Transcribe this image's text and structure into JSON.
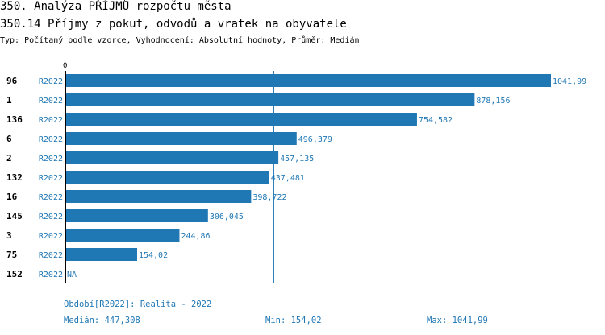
{
  "header": {
    "title": "350. Analýza PŘÍJMŮ rozpočtu města",
    "subtitle": "350.14 Příjmy z pokut, odvodů a vratek na obyvatele",
    "info": "Typ: Počítaný podle vzorce, Vyhodnocení: Absolutní hodnoty, Průměr: Medián"
  },
  "chart_data": {
    "type": "bar",
    "orientation": "horizontal",
    "axis_zero_label": "0",
    "categories": [
      "96",
      "1",
      "136",
      "6",
      "2",
      "132",
      "16",
      "145",
      "3",
      "75",
      "152"
    ],
    "period_labels": [
      "R2022",
      "R2022",
      "R2022",
      "R2022",
      "R2022",
      "R2022",
      "R2022",
      "R2022",
      "R2022",
      "R2022",
      "R2022"
    ],
    "values": [
      1041.99,
      878.156,
      754.582,
      496.379,
      457.135,
      437.481,
      398.722,
      306.045,
      244.86,
      154.02,
      null
    ],
    "value_labels": [
      "1041,99",
      "878,156",
      "754,582",
      "496,379",
      "457,135",
      "437,481",
      "398,722",
      "306,045",
      "244,86",
      "154,02",
      "NA"
    ],
    "median": 447.308,
    "xlim": [
      0,
      1041.99
    ],
    "bar_color": "#1f77b4"
  },
  "footer": {
    "period": "Období[R2022]: Realita - 2022",
    "median": "Medián: 447,308",
    "min": "Min: 154,02",
    "max": "Max: 1041,99"
  }
}
